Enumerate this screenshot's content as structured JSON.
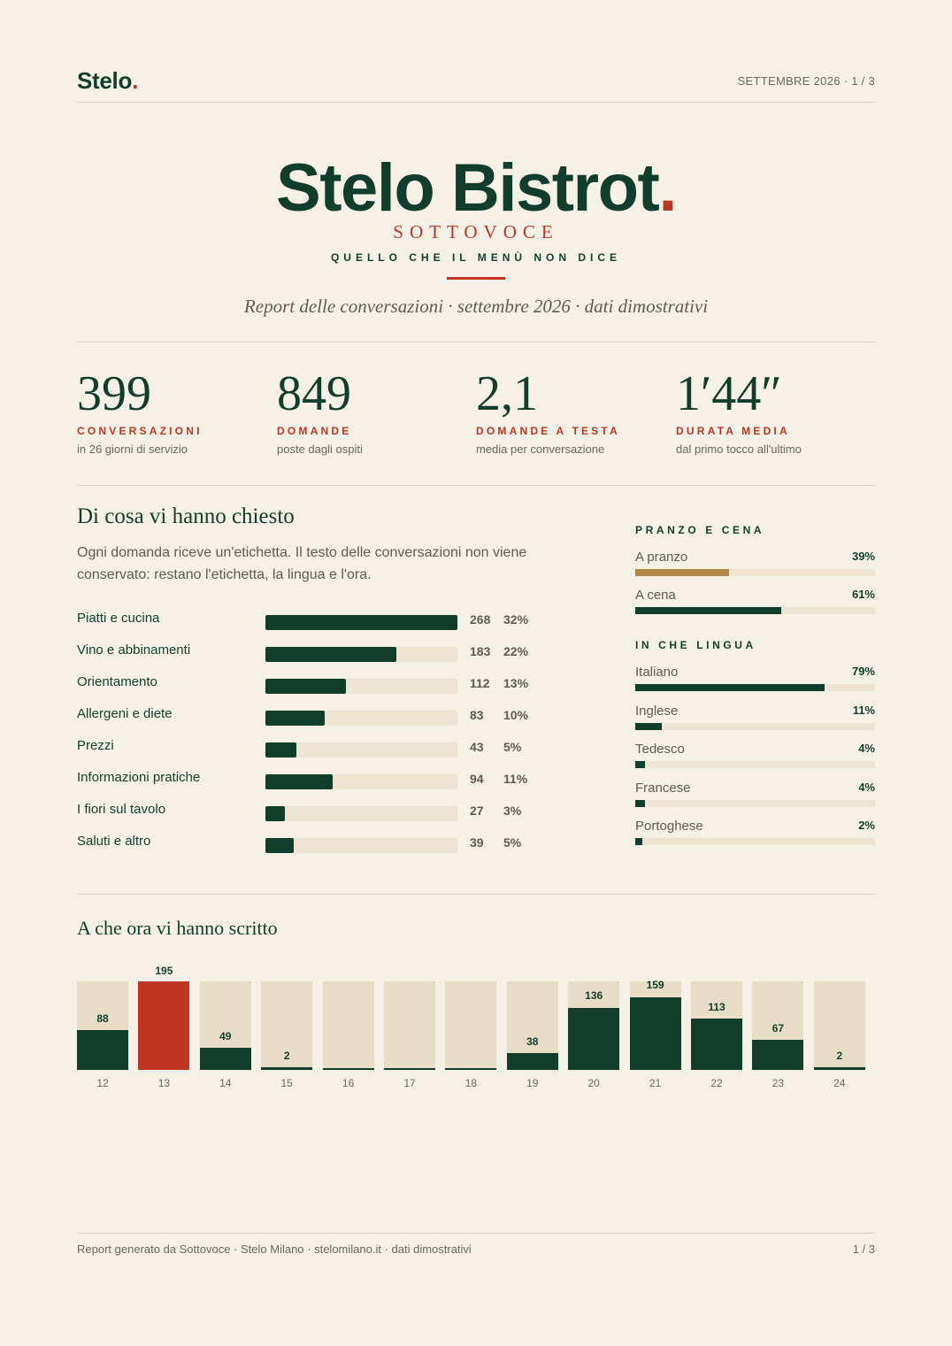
{
  "header": {
    "logo_text": "Stelo",
    "logo_dot": ".",
    "page_info": "SETTEMBRE 2026  ·  1 / 3"
  },
  "hero": {
    "title": "Stelo Bistrot",
    "title_dot": ".",
    "subtitle": "SOTTOVOCE",
    "tagline": "QUELLO CHE IL MENÙ NON DICE",
    "report_line": "Report delle conversazioni · settembre 2026 · dati dimostrativi"
  },
  "kpis": [
    {
      "value": "399",
      "label": "CONVERSAZIONI",
      "desc": "in 26 giorni di servizio"
    },
    {
      "value": "849",
      "label": "DOMANDE",
      "desc": "poste dagli ospiti"
    },
    {
      "value": "2,1",
      "label": "DOMANDE A TESTA",
      "desc": "media per conversazione"
    },
    {
      "value": "1′44″",
      "label": "DURATA MEDIA",
      "desc": "dal primo tocco all'ultimo"
    }
  ],
  "topics_section": {
    "title": "Di cosa vi hanno chiesto",
    "intro": "Ogni domanda riceve un'etichetta. Il testo delle conversazioni non viene conservato: restano l'etichetta, la lingua e l'ora.",
    "items": [
      {
        "label": "Piatti e cucina",
        "count": "268",
        "pct": "32%",
        "value": 268
      },
      {
        "label": "Vino e abbinamenti",
        "count": "183",
        "pct": "22%",
        "value": 183
      },
      {
        "label": "Orientamento",
        "count": "112",
        "pct": "13%",
        "value": 112
      },
      {
        "label": "Allergeni e diete",
        "count": "83",
        "pct": "10%",
        "value": 83
      },
      {
        "label": "Prezzi",
        "count": "43",
        "pct": "5%",
        "value": 43
      },
      {
        "label": "Informazioni pratiche",
        "count": "94",
        "pct": "11%",
        "value": 94
      },
      {
        "label": "I fiori sul tavolo",
        "count": "27",
        "pct": "3%",
        "value": 27
      },
      {
        "label": "Saluti e altro",
        "count": "39",
        "pct": "5%",
        "value": 39
      }
    ]
  },
  "meals": {
    "title": "PRANZO E CENA",
    "items": [
      {
        "label": "A pranzo",
        "pct": "39%",
        "value": 39,
        "color": "#b08a45"
      },
      {
        "label": "A cena",
        "pct": "61%",
        "value": 61,
        "color": "#123d2d"
      }
    ]
  },
  "languages": {
    "title": "IN CHE LINGUA",
    "items": [
      {
        "label": "Italiano",
        "pct": "79%",
        "value": 79
      },
      {
        "label": "Inglese",
        "pct": "11%",
        "value": 11
      },
      {
        "label": "Tedesco",
        "pct": "4%",
        "value": 4
      },
      {
        "label": "Francese",
        "pct": "4%",
        "value": 4
      },
      {
        "label": "Portoghese",
        "pct": "2%",
        "value": 2
      }
    ]
  },
  "hours_section": {
    "title": "A che ora vi hanno scritto"
  },
  "chart_data": {
    "type": "bar",
    "categories": [
      "12",
      "13",
      "14",
      "15",
      "16",
      "17",
      "18",
      "19",
      "20",
      "21",
      "22",
      "23",
      "24"
    ],
    "values": [
      88,
      195,
      49,
      2,
      0,
      0,
      0,
      38,
      136,
      159,
      113,
      67,
      2
    ],
    "labels": [
      "88",
      "195",
      "49",
      "2",
      "",
      "",
      "",
      "38",
      "136",
      "159",
      "113",
      "67",
      "2"
    ],
    "highlight_category": "13",
    "colors": {
      "bar": "#123d2d",
      "highlight": "#c13322",
      "track": "#e7dcc6"
    },
    "ylim": [
      0,
      195
    ]
  },
  "footer": {
    "left": "Report generato da Sottovoce · Stelo Milano · stelomilano.it   ·   dati dimostrativi",
    "right": "1 / 3"
  }
}
